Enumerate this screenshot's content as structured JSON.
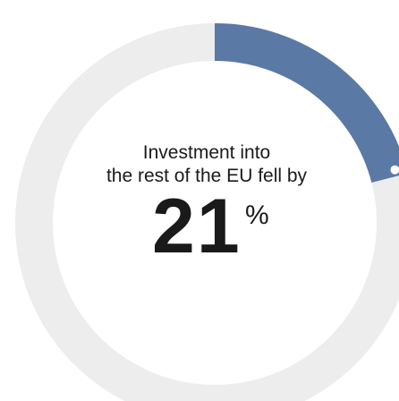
{
  "chart_data": {
    "type": "pie",
    "style": "donut",
    "caption_line_1": "Investment into",
    "caption_line_2": "the rest of the EU fell by",
    "value": 21,
    "value_text": "21",
    "unit": "%",
    "colors": {
      "filled": "#5a79a5",
      "track": "#ededed",
      "marker": "#ffffff",
      "text": "#1a1a1a"
    }
  }
}
